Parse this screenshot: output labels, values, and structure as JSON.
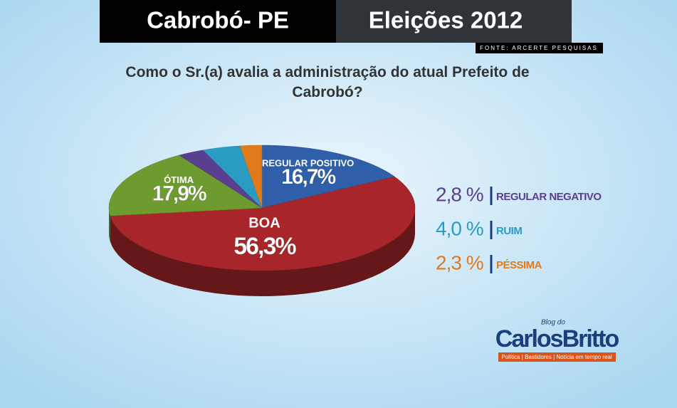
{
  "header": {
    "place": "Cabrobó- PE",
    "event": "Eleições 2012",
    "source": "FONTE: ARCERTE PESQUISAS"
  },
  "chart_data": {
    "type": "pie",
    "title": "Como o Sr.(a) avalia a administração do atual Prefeito de Cabrobó?",
    "categories": [
      "REGULAR POSITIVO",
      "BOA",
      "ÓTIMA",
      "REGULAR NEGATIVO",
      "RUIM",
      "PÉSSIMA"
    ],
    "values": [
      16.7,
      56.3,
      17.9,
      2.8,
      4.0,
      2.3
    ],
    "value_labels": [
      "16,7%",
      "56,3%",
      "17,9%",
      "2,8 %",
      "4,0 %",
      "2,3 %"
    ],
    "colors": [
      "#2e5fa8",
      "#a8262a",
      "#6e9b30",
      "#5b3f8f",
      "#2a9cc4",
      "#e07a1a"
    ]
  },
  "logo": {
    "prefix": "Blog do",
    "name": "CarlosBritto",
    "tagline": "Política | Bastidores | Notícia em tempo real"
  }
}
